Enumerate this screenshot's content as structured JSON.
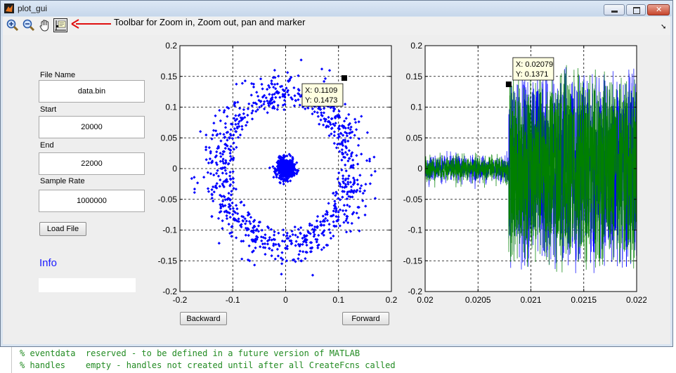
{
  "window": {
    "title": "plot_gui"
  },
  "toolbar": {
    "annotation": "Toolbar for Zoom in, Zoom out, pan and marker",
    "tools": [
      "zoom-in",
      "zoom-out",
      "pan",
      "data-cursor"
    ]
  },
  "form": {
    "file_name_label": "File Name",
    "file_name_value": "data.bin",
    "start_label": "Start",
    "start_value": "20000",
    "end_label": "End",
    "end_value": "22000",
    "sample_rate_label": "Sample Rate",
    "sample_rate_value": "1000000",
    "load_button": "Load File",
    "info_label": "Info",
    "info_value": ""
  },
  "buttons": {
    "backward": "Backward",
    "forward": "Forward"
  },
  "editor": {
    "line1": "% eventdata  reserved - to be defined in a future version of MATLAB",
    "line2": "% handles    empty - handles not created until after all CreateFcns called"
  },
  "colors": {
    "scatter": "#0000ff",
    "series1": "#0000ff",
    "series2": "#008000",
    "title_bar": "#c7d7eb"
  },
  "chart_data": [
    {
      "type": "scatter",
      "xlim": [
        -0.2,
        0.2
      ],
      "ylim": [
        -0.2,
        0.2
      ],
      "xticks": [
        "-0.2",
        "-0.1",
        "0",
        "0.1",
        "0.2"
      ],
      "yticks": [
        "0.2",
        "0.15",
        "0.1",
        "0.05",
        "0",
        "-0.05",
        "-0.1",
        "-0.15",
        "-0.2"
      ],
      "grid": true,
      "description_points": "ring of I/Q samples radius ~0.1–0.15 plus dense cluster near origin",
      "datatip": {
        "x_text": "X: 0.1109",
        "y_text": "Y: 0.1473",
        "x": 0.1109,
        "y": 0.1473
      }
    },
    {
      "type": "line",
      "xlim": [
        0.02,
        0.022
      ],
      "ylim": [
        -0.2,
        0.2
      ],
      "xticks": [
        "0.02",
        "0.0205",
        "0.021",
        "0.0215",
        "0.022"
      ],
      "yticks": [
        "0.2",
        "0.15",
        "0.1",
        "0.05",
        "0",
        "-0.05",
        "-0.1",
        "-0.15",
        "-0.2"
      ],
      "grid": true,
      "series": [
        {
          "color": "#0000ff"
        },
        {
          "color": "#008000"
        }
      ],
      "noise_amplitude": 0.02,
      "burst_start": 0.02079,
      "burst_amplitude": 0.15,
      "datatip": {
        "x_text": "X: 0.02079",
        "y_text": "Y: 0.1371",
        "x": 0.02079,
        "y": 0.1371
      }
    }
  ]
}
